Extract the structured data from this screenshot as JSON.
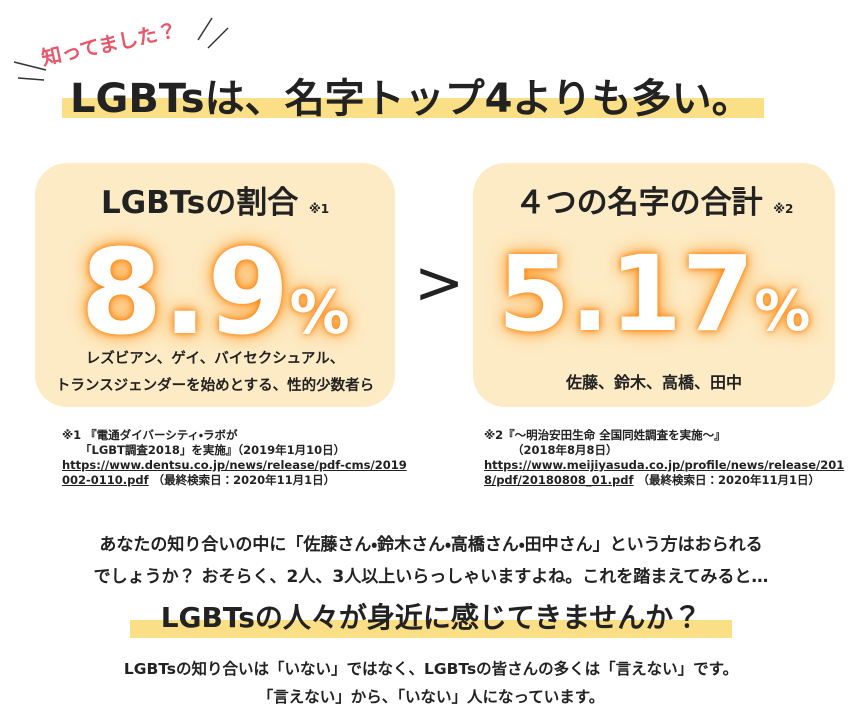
{
  "kicker": "知ってました？",
  "headline": "LGBTsは、名字トップ4よりも多い。",
  "left_card": {
    "title": "LGBTsの割合",
    "note": "※1",
    "number": "8.9",
    "unit": "%",
    "lines": [
      "レズビアン、ゲイ、バイセクシュアル、",
      "トランスジェンダーを始めとする、性的少数者ら"
    ]
  },
  "comparison": ">",
  "right_card": {
    "title": "４つの名字の合計",
    "note": "※2",
    "number": "5.17",
    "unit": "%",
    "lines": [
      "佐藤、鈴木、高橋、田中"
    ]
  },
  "footnote_1": {
    "lines": [
      "※1 『電通ダイバーシティ・ラボが",
      "「LGBT調査2018」を実施』（2019年1月10日）"
    ],
    "url_lines": [
      "https://www.dentsu.co.jp/news/release/pdf-cms/2019",
      "002-0110.pdf"
    ],
    "accessed": "（最終検索日：2020年11月1日）"
  },
  "footnote_2": {
    "lines": [
      "※2『～明治安田生命 全国同姓調査を実施～』",
      "（2018年8月8日）"
    ],
    "url_lines": [
      "https://www.meijiyasuda.co.jp/profile/news/release/201",
      "8/pdf/20180808_01.pdf"
    ],
    "accessed": "（最終検索日：2020年11月1日）"
  },
  "body": [
    "あなたの知り合いの中に「佐藤さん・鈴木さん・高橋さん・田中さん」という方はおられる",
    "でしょうか？ おそらく、2人、3人以上いらっしゃいますよね。これを踏まえてみると…"
  ],
  "subheadline": "LGBTsの人々が身近に感じてきませんか？",
  "closing": [
    "LGBTsの知り合いは「いない」ではなく、LGBTsの皆さんの多くは「言えない」です。",
    "「言えない」から、「いない」人になっています。"
  ]
}
